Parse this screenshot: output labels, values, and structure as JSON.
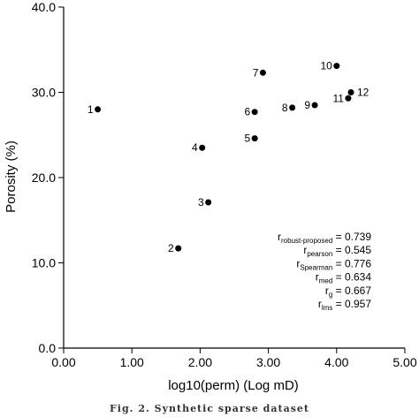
{
  "chart_data": {
    "type": "scatter",
    "xlabel": "log10(perm) (Log mD)",
    "ylabel": "Porosity (%)",
    "xlim": [
      0,
      5
    ],
    "ylim": [
      0,
      40
    ],
    "x_ticks": [
      "0.00",
      "1.00",
      "2.00",
      "3.00",
      "4.00",
      "5.00"
    ],
    "y_ticks": [
      "0.0",
      "10.0",
      "20.0",
      "30.0",
      "40.0"
    ],
    "grid": false,
    "points": [
      {
        "label": "1",
        "x": 0.5,
        "y": 28.0
      },
      {
        "label": "2",
        "x": 1.68,
        "y": 11.7
      },
      {
        "label": "3",
        "x": 2.12,
        "y": 17.1
      },
      {
        "label": "4",
        "x": 2.03,
        "y": 23.5
      },
      {
        "label": "5",
        "x": 2.8,
        "y": 24.6
      },
      {
        "label": "6",
        "x": 2.8,
        "y": 27.7
      },
      {
        "label": "7",
        "x": 2.92,
        "y": 32.3
      },
      {
        "label": "8",
        "x": 3.35,
        "y": 28.2
      },
      {
        "label": "9",
        "x": 3.68,
        "y": 28.5
      },
      {
        "label": "10",
        "x": 4.0,
        "y": 33.1
      },
      {
        "label": "11",
        "x": 4.17,
        "y": 29.3
      },
      {
        "label": "12",
        "x": 4.21,
        "y": 30.0
      }
    ],
    "stats": [
      {
        "sym": "r",
        "sub": "robust-proposed",
        "value": "= 0.739"
      },
      {
        "sym": "r",
        "sub": "pearson",
        "value": "= 0.545"
      },
      {
        "sym": "r",
        "sub": "Spearman",
        "value": "= 0.776"
      },
      {
        "sym": "r",
        "sub": "med",
        "value": "= 0.634"
      },
      {
        "sym": "r",
        "sub": "g",
        "value": "= 0.667"
      },
      {
        "sym": "r",
        "sub": "lms",
        "value": "= 0.957"
      }
    ]
  },
  "caption": "Fig. 2. Synthetic sparse dataset"
}
